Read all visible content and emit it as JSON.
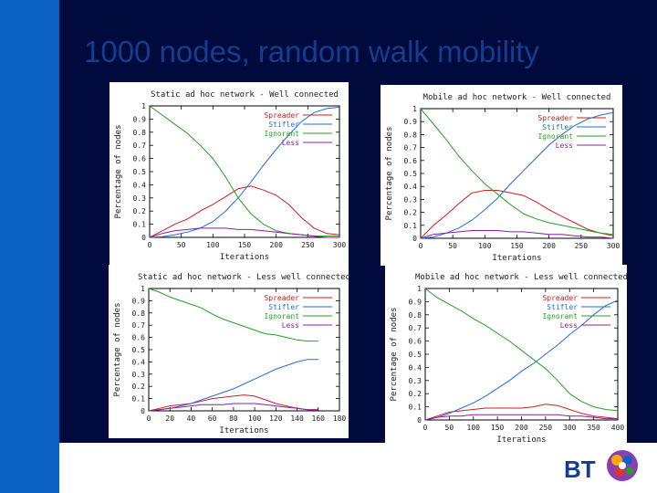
{
  "slide": {
    "title": "1000 nodes, random walk mobility",
    "logo_text": "BT"
  },
  "colors": {
    "spreader": "#cc1f1f",
    "stifler": "#1f6fd6",
    "ignorant": "#21a31f",
    "less": "#8a1fa8",
    "brand_blue": "#0c61c4",
    "dark_navy": "#010a3d"
  },
  "chart_data": [
    {
      "type": "line",
      "title": "Static ad hoc network - Well connected",
      "xlabel": "Iterations",
      "ylabel": "Percentage of nodes",
      "xlim": [
        0,
        300
      ],
      "ylim": [
        0,
        1
      ],
      "xticks": [
        0,
        50,
        100,
        150,
        200,
        250,
        300
      ],
      "yticks": [
        0,
        0.1,
        0.2,
        0.3,
        0.4,
        0.5,
        0.6,
        0.7,
        0.8,
        0.9,
        1
      ],
      "legend": "top-right",
      "series": [
        {
          "name": "Spreader",
          "x": [
            0,
            20,
            40,
            60,
            80,
            100,
            120,
            140,
            160,
            180,
            200,
            220,
            240,
            260,
            280,
            300
          ],
          "y": [
            0,
            0.05,
            0.1,
            0.14,
            0.2,
            0.25,
            0.31,
            0.37,
            0.39,
            0.36,
            0.32,
            0.25,
            0.15,
            0.07,
            0.03,
            0.02
          ]
        },
        {
          "name": "Stifler",
          "x": [
            0,
            20,
            40,
            60,
            80,
            100,
            120,
            140,
            160,
            180,
            200,
            220,
            240,
            260,
            280,
            300
          ],
          "y": [
            0,
            0.005,
            0.02,
            0.04,
            0.07,
            0.12,
            0.2,
            0.3,
            0.42,
            0.55,
            0.67,
            0.78,
            0.88,
            0.95,
            0.98,
            0.99
          ]
        },
        {
          "name": "Ignorant",
          "x": [
            0,
            20,
            40,
            60,
            80,
            100,
            120,
            140,
            160,
            180,
            200,
            220,
            240,
            260,
            280,
            300
          ],
          "y": [
            1,
            0.93,
            0.86,
            0.79,
            0.7,
            0.6,
            0.46,
            0.3,
            0.18,
            0.1,
            0.05,
            0.03,
            0.02,
            0.01,
            0.01,
            0.01
          ]
        },
        {
          "name": "Less",
          "x": [
            0,
            20,
            40,
            60,
            80,
            100,
            120,
            140,
            160,
            180,
            200,
            220,
            240,
            260,
            280,
            300
          ],
          "y": [
            0,
            0.03,
            0.05,
            0.06,
            0.07,
            0.07,
            0.07,
            0.06,
            0.06,
            0.05,
            0.04,
            0.03,
            0.02,
            0.01,
            0,
            0
          ]
        }
      ]
    },
    {
      "type": "line",
      "title": "Mobile ad hoc network - Well connected",
      "xlabel": "Iterations",
      "ylabel": "Percentage of nodes",
      "xlim": [
        0,
        300
      ],
      "ylim": [
        0,
        1
      ],
      "xticks": [
        0,
        50,
        100,
        150,
        200,
        250,
        300
      ],
      "yticks": [
        0,
        0.1,
        0.2,
        0.3,
        0.4,
        0.5,
        0.6,
        0.7,
        0.8,
        0.9,
        1
      ],
      "legend": "top-right",
      "series": [
        {
          "name": "Spreader",
          "x": [
            0,
            20,
            40,
            60,
            80,
            100,
            120,
            140,
            160,
            180,
            200,
            220,
            240,
            260,
            280,
            300
          ],
          "y": [
            0,
            0.1,
            0.18,
            0.27,
            0.35,
            0.37,
            0.37,
            0.35,
            0.33,
            0.28,
            0.22,
            0.17,
            0.12,
            0.07,
            0.04,
            0.02
          ]
        },
        {
          "name": "Stifler",
          "x": [
            0,
            20,
            40,
            60,
            80,
            100,
            120,
            140,
            160,
            180,
            200,
            220,
            240,
            260,
            280,
            300
          ],
          "y": [
            0,
            0.01,
            0.04,
            0.08,
            0.14,
            0.22,
            0.31,
            0.42,
            0.52,
            0.62,
            0.72,
            0.8,
            0.87,
            0.92,
            0.95,
            0.97
          ]
        },
        {
          "name": "Ignorant",
          "x": [
            0,
            20,
            40,
            60,
            80,
            100,
            120,
            140,
            160,
            180,
            200,
            220,
            240,
            260,
            280,
            300
          ],
          "y": [
            1,
            0.88,
            0.76,
            0.63,
            0.52,
            0.42,
            0.34,
            0.26,
            0.19,
            0.15,
            0.12,
            0.1,
            0.08,
            0.06,
            0.04,
            0.03
          ]
        },
        {
          "name": "Less",
          "x": [
            0,
            20,
            40,
            60,
            80,
            100,
            120,
            140,
            160,
            180,
            200,
            220,
            240,
            260,
            280,
            300
          ],
          "y": [
            0,
            0.03,
            0.04,
            0.05,
            0.06,
            0.06,
            0.06,
            0.05,
            0.05,
            0.04,
            0.03,
            0.03,
            0.02,
            0.01,
            0.01,
            0
          ]
        }
      ]
    },
    {
      "type": "line",
      "title": "Static ad hoc network - Less well connected",
      "xlabel": "Iterations",
      "ylabel": "Percentage of nodes",
      "xlim": [
        0,
        180
      ],
      "ylim": [
        0,
        1
      ],
      "xticks": [
        0,
        20,
        40,
        60,
        80,
        100,
        120,
        140,
        160,
        180
      ],
      "yticks": [
        0,
        0.1,
        0.2,
        0.3,
        0.4,
        0.5,
        0.6,
        0.7,
        0.8,
        0.9,
        1
      ],
      "legend": "top-right",
      "series": [
        {
          "name": "Spreader",
          "x": [
            0,
            10,
            20,
            30,
            40,
            50,
            60,
            70,
            80,
            90,
            100,
            110,
            120,
            130,
            140,
            150,
            160
          ],
          "y": [
            0,
            0.02,
            0.04,
            0.05,
            0.06,
            0.08,
            0.1,
            0.11,
            0.12,
            0.13,
            0.12,
            0.09,
            0.06,
            0.04,
            0.02,
            0.01,
            0.01
          ]
        },
        {
          "name": "Stifler",
          "x": [
            0,
            10,
            20,
            30,
            40,
            50,
            60,
            70,
            80,
            90,
            100,
            110,
            120,
            130,
            140,
            150,
            160
          ],
          "y": [
            0,
            0.01,
            0.02,
            0.04,
            0.06,
            0.09,
            0.12,
            0.15,
            0.18,
            0.22,
            0.26,
            0.3,
            0.34,
            0.37,
            0.4,
            0.42,
            0.42
          ]
        },
        {
          "name": "Ignorant",
          "x": [
            0,
            10,
            20,
            30,
            40,
            50,
            60,
            70,
            80,
            90,
            100,
            110,
            120,
            130,
            140,
            150,
            160
          ],
          "y": [
            1,
            0.97,
            0.93,
            0.9,
            0.87,
            0.84,
            0.79,
            0.75,
            0.72,
            0.69,
            0.66,
            0.63,
            0.62,
            0.6,
            0.58,
            0.57,
            0.57
          ]
        },
        {
          "name": "Less",
          "x": [
            0,
            10,
            20,
            30,
            40,
            50,
            60,
            70,
            80,
            90,
            100,
            110,
            120,
            130,
            140,
            150,
            160
          ],
          "y": [
            0,
            0.01,
            0.02,
            0.03,
            0.04,
            0.05,
            0.05,
            0.05,
            0.06,
            0.06,
            0.06,
            0.05,
            0.04,
            0.03,
            0.02,
            0.01,
            0.01
          ]
        }
      ]
    },
    {
      "type": "line",
      "title": "Mobile ad hoc network - Less well connected",
      "xlabel": "Iterations",
      "ylabel": "Percentage of nodes",
      "xlim": [
        0,
        400
      ],
      "ylim": [
        0,
        1
      ],
      "xticks": [
        0,
        50,
        100,
        150,
        200,
        250,
        300,
        350,
        400
      ],
      "yticks": [
        0,
        0.1,
        0.2,
        0.3,
        0.4,
        0.5,
        0.6,
        0.7,
        0.8,
        0.9,
        1
      ],
      "legend": "top-right",
      "series": [
        {
          "name": "Spreader",
          "x": [
            0,
            25,
            50,
            75,
            100,
            125,
            150,
            175,
            200,
            225,
            250,
            275,
            300,
            325,
            350,
            375,
            400
          ],
          "y": [
            0,
            0.03,
            0.06,
            0.07,
            0.08,
            0.09,
            0.09,
            0.09,
            0.09,
            0.1,
            0.12,
            0.11,
            0.08,
            0.05,
            0.03,
            0.02,
            0.01
          ]
        },
        {
          "name": "Stifler",
          "x": [
            0,
            25,
            50,
            75,
            100,
            125,
            150,
            175,
            200,
            225,
            250,
            275,
            300,
            325,
            350,
            375,
            400
          ],
          "y": [
            0,
            0.02,
            0.05,
            0.09,
            0.13,
            0.18,
            0.24,
            0.3,
            0.37,
            0.43,
            0.5,
            0.57,
            0.65,
            0.72,
            0.8,
            0.87,
            0.91
          ]
        },
        {
          "name": "Ignorant",
          "x": [
            0,
            25,
            50,
            75,
            100,
            125,
            150,
            175,
            200,
            225,
            250,
            275,
            300,
            325,
            350,
            375,
            400
          ],
          "y": [
            1,
            0.93,
            0.88,
            0.83,
            0.77,
            0.72,
            0.66,
            0.6,
            0.53,
            0.46,
            0.39,
            0.3,
            0.2,
            0.14,
            0.1,
            0.08,
            0.07
          ]
        },
        {
          "name": "Less",
          "x": [
            0,
            25,
            50,
            75,
            100,
            125,
            150,
            175,
            200,
            225,
            250,
            275,
            300,
            325,
            350,
            375,
            400
          ],
          "y": [
            0,
            0.02,
            0.03,
            0.03,
            0.04,
            0.04,
            0.04,
            0.04,
            0.04,
            0.04,
            0.04,
            0.04,
            0.03,
            0.03,
            0.02,
            0.01,
            0.01
          ]
        }
      ]
    }
  ]
}
